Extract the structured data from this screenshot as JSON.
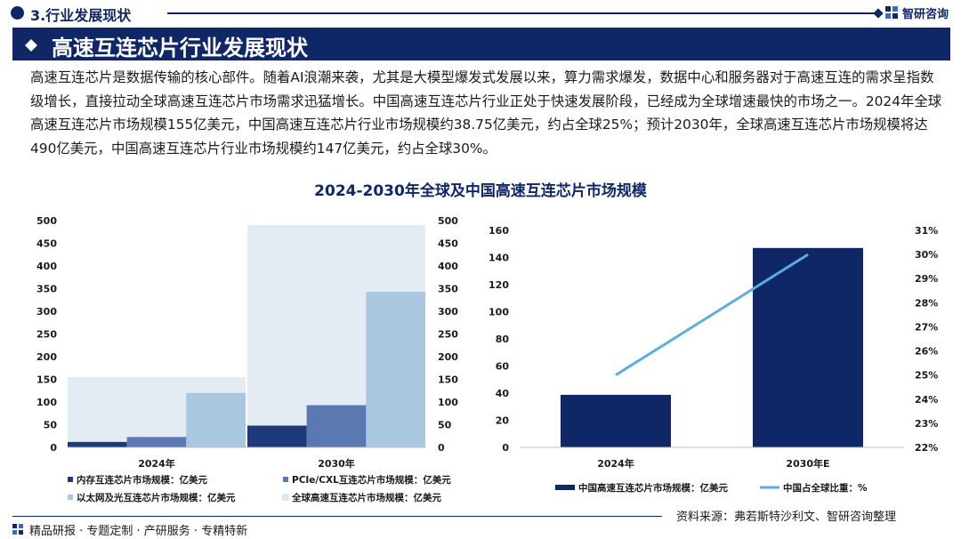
{
  "header": {
    "section_title": "3.行业发展现状",
    "logo_text": "智研咨询",
    "banner_title": "高速互连芯片行业发展现状"
  },
  "body_text": "高速互连芯片是数据传输的核心部件。随着AI浪潮来袭，尤其是大模型爆发式发展以来，算力需求爆发，数据中心和服务器对于高速互连的需求呈指数级增长，直接拉动全球高速互连芯片市场需求迅猛增长。中国高速互连芯片行业正处于快速发展阶段，已经成为全球增速最快的市场之一。2024年全球高速互连芯片市场规模155亿美元，中国高速互连芯片行业市场规模约38.75亿美元，约占全球25%；预计2030年，全球高速互连芯片市场规模将达490亿美元，中国高速互连芯片行业市场规模约147亿美元，约占全球30%。",
  "figure_title": "2024-2030年全球及中国高速互连芯片市场规模",
  "chart_data": [
    {
      "type": "bar",
      "categories": [
        "2024年",
        "2030年"
      ],
      "ylim": [
        0,
        500
      ],
      "yticks": [
        0,
        50,
        100,
        150,
        200,
        250,
        300,
        350,
        400,
        450,
        500
      ],
      "series": [
        {
          "name": "内存互连芯片市场规模：亿美元",
          "values": [
            12,
            48
          ],
          "color": "#1f3a7a"
        },
        {
          "name": "PCIe/CXL互连芯片市场规模：亿美元",
          "values": [
            23,
            93
          ],
          "color": "#5b78b3"
        },
        {
          "name": "以太网及光互连芯片市场规模：亿美元",
          "values": [
            120,
            343
          ],
          "color": "#a9c7df"
        },
        {
          "name": "全球高速互连芯片市场规模：亿美元",
          "values": [
            155,
            490
          ],
          "color": "#e3ecf3"
        }
      ]
    },
    {
      "type": "bar",
      "categories": [
        "2024年",
        "2030年E"
      ],
      "ylim": [
        0,
        160
      ],
      "yticks": [
        0,
        20,
        40,
        60,
        80,
        100,
        120,
        140,
        160
      ],
      "y2lim": [
        22,
        31
      ],
      "y2ticks": [
        "22%",
        "23%",
        "24%",
        "25%",
        "26%",
        "27%",
        "28%",
        "29%",
        "30%",
        "31%"
      ],
      "series": [
        {
          "name": "中国高速互连芯片市场规模：亿美元",
          "type": "bar",
          "values": [
            38.75,
            147
          ],
          "color": "#0f2766"
        },
        {
          "name": "中国占全球比重：%",
          "type": "line",
          "axis": "right",
          "values": [
            25,
            30
          ],
          "color": "#5aaee0"
        }
      ]
    }
  ],
  "footer": {
    "tagline": "精品研报 · 专题定制 · 产研服务 · 专精特新",
    "source": "资料来源：弗若斯特沙利文、智研咨询整理"
  }
}
